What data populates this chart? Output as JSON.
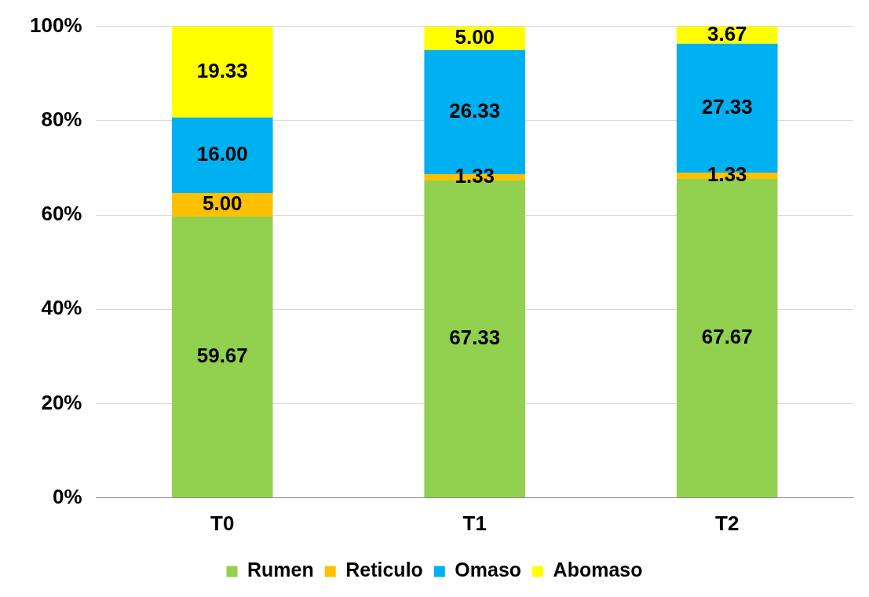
{
  "chart_data": {
    "type": "bar",
    "stacked": true,
    "categories": [
      "T0",
      "T1",
      "T2"
    ],
    "series": [
      {
        "name": "Rumen",
        "color": "#92d050",
        "values": [
          59.67,
          67.33,
          67.67
        ],
        "value_labels": [
          "59.67",
          "67.33",
          "67.67"
        ]
      },
      {
        "name": "Reticulo",
        "color": "#ffc000",
        "values": [
          5.0,
          1.33,
          1.33
        ],
        "value_labels": [
          "5.00",
          "1.33",
          "1.33"
        ]
      },
      {
        "name": "Omaso",
        "color": "#00b0f0",
        "values": [
          16.0,
          26.33,
          27.33
        ],
        "value_labels": [
          "16.00",
          "26.33",
          "27.33"
        ]
      },
      {
        "name": "Abomaso",
        "color": "#ffff00",
        "values": [
          19.33,
          5.0,
          3.67
        ],
        "value_labels": [
          "19.33",
          "5.00",
          "3.67"
        ]
      }
    ],
    "ylim": [
      0,
      100
    ],
    "yticks": [
      {
        "value": 0,
        "label": "0%"
      },
      {
        "value": 20,
        "label": "20%"
      },
      {
        "value": 40,
        "label": "40%"
      },
      {
        "value": 60,
        "label": "60%"
      },
      {
        "value": 80,
        "label": "80%"
      },
      {
        "value": 100,
        "label": "100%"
      }
    ],
    "grid": "y",
    "legend": "bottom"
  }
}
